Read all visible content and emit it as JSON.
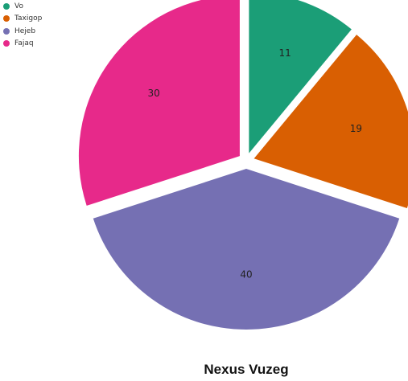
{
  "chart_data": {
    "type": "pie",
    "title": "Nexus Vuzeg",
    "categories": [
      "Vo",
      "Taxigop",
      "Hejeb",
      "Fajaq"
    ],
    "values": [
      11,
      19,
      40,
      30
    ],
    "colors": [
      "#1b9e77",
      "#d95f02",
      "#7570b3",
      "#e7298a"
    ],
    "legend_position": "top-left",
    "exploded": true
  }
}
